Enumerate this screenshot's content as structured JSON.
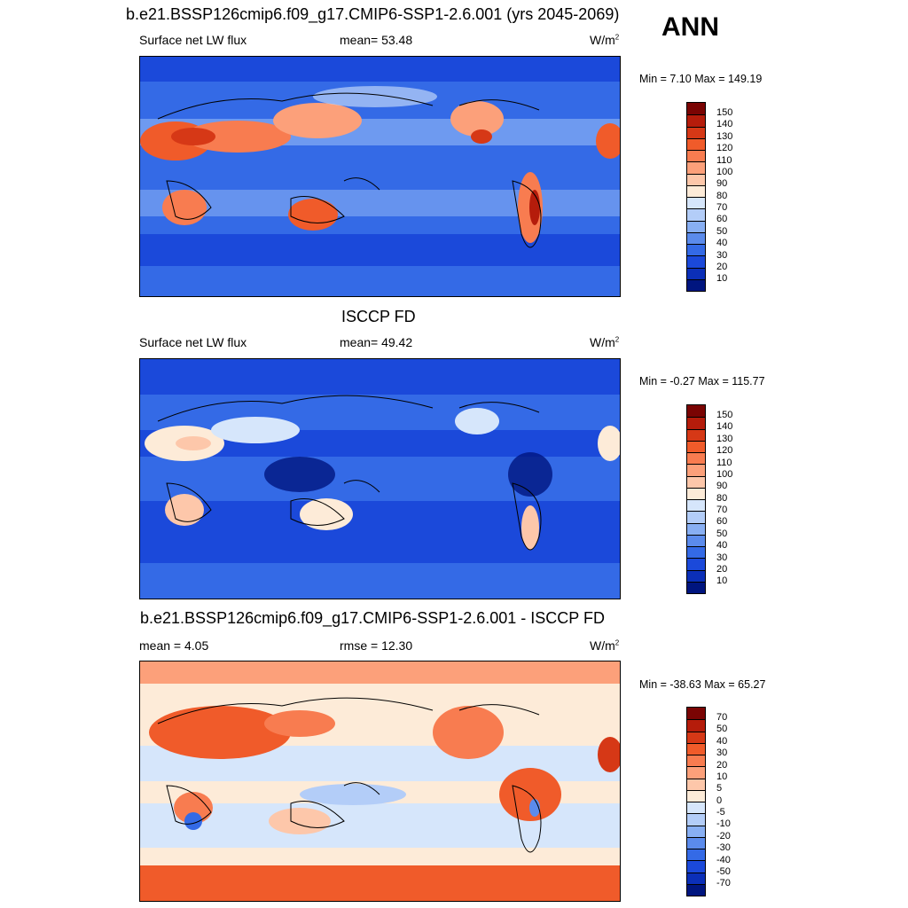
{
  "header": {
    "main_title": "b.e21.BSSP126cmip6.f09_g17.CMIP6-SSP1-2.6.001 (yrs 2045-2069)",
    "season": "ANN"
  },
  "panels": [
    {
      "title": "",
      "left_label": "Surface net LW flux",
      "center_label": "mean=  53.48",
      "units": "W/m",
      "units_sup": "2",
      "minmax": "Min =   7.10 Max = 149.19",
      "palette": "absolute",
      "colorbar_ticks": [
        "150",
        "140",
        "130",
        "120",
        "110",
        "100",
        "90",
        "80",
        "70",
        "60",
        "50",
        "40",
        "30",
        "20",
        "10"
      ]
    },
    {
      "title": "ISCCP FD",
      "left_label": "Surface net LW flux",
      "center_label": "mean=  49.42",
      "units": "W/m",
      "units_sup": "2",
      "minmax": "Min =  -0.27 Max = 115.77",
      "palette": "absolute",
      "colorbar_ticks": [
        "150",
        "140",
        "130",
        "120",
        "110",
        "100",
        "90",
        "80",
        "70",
        "60",
        "50",
        "40",
        "30",
        "20",
        "10"
      ]
    },
    {
      "title": "b.e21.BSSP126cmip6.f09_g17.CMIP6-SSP1-2.6.001 - ISCCP FD",
      "left_label": "mean =   4.05",
      "center_label": "rmse =  12.30",
      "units": "W/m",
      "units_sup": "2",
      "minmax": "Min = -38.63 Max =  65.27",
      "palette": "difference",
      "colorbar_ticks": [
        "70",
        "50",
        "40",
        "30",
        "20",
        "10",
        "5",
        "0",
        "-5",
        "-10",
        "-20",
        "-30",
        "-40",
        "-50",
        "-70"
      ]
    }
  ],
  "colors": {
    "absolute": [
      "#7a0403",
      "#b51c0b",
      "#d63816",
      "#f05b2a",
      "#f87c50",
      "#fca07a",
      "#fdc7aa",
      "#fdebd8",
      "#d6e6fb",
      "#b3cdf8",
      "#88aff3",
      "#5b8bec",
      "#346ae6",
      "#1b49da",
      "#0b2fb8",
      "#00157f"
    ],
    "difference": [
      "#7a0403",
      "#b51c0b",
      "#d63816",
      "#f05b2a",
      "#f87c50",
      "#fca07a",
      "#fdc7aa",
      "#fdebd8",
      "#d6e6fb",
      "#b3cdf8",
      "#88aff3",
      "#5b8bec",
      "#346ae6",
      "#1b49da",
      "#0b2fb8",
      "#00157f"
    ]
  }
}
